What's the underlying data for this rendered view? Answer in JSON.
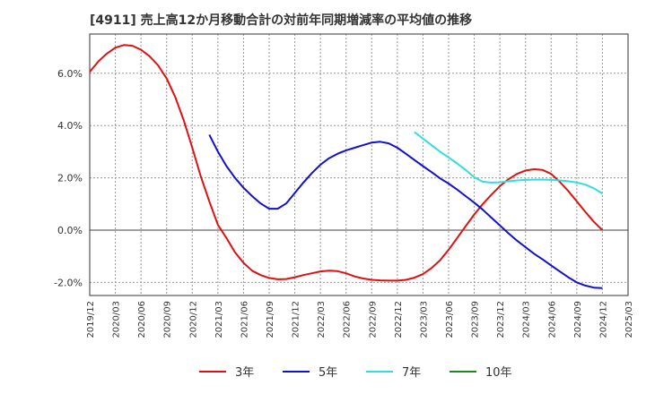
{
  "chart_data": {
    "type": "line",
    "title": "[4911]  売上高12か月移動合計の対前年同期増減率の平均値の推移",
    "xlabel": "",
    "ylabel": "",
    "ylim": [
      -2.5,
      7.5
    ],
    "y_ticks": [
      -2.0,
      0.0,
      2.0,
      4.0,
      6.0
    ],
    "y_tick_labels": [
      "-2.0%",
      "0.0%",
      "2.0%",
      "4.0%",
      "6.0%"
    ],
    "x_range": [
      "2019/12",
      "2025/03"
    ],
    "x_tick_labels": [
      "2019/12",
      "2020/03",
      "2020/06",
      "2020/09",
      "2020/12",
      "2021/03",
      "2021/06",
      "2021/09",
      "2021/12",
      "2022/03",
      "2022/06",
      "2022/09",
      "2022/12",
      "2023/03",
      "2023/06",
      "2023/09",
      "2023/12",
      "2024/03",
      "2024/06",
      "2024/09",
      "2024/12",
      "2025/03"
    ],
    "grid": true,
    "legend_position": "bottom",
    "series": [
      {
        "name": "3年",
        "color": "#dd1111",
        "points": [
          [
            "2019/12",
            6.05
          ],
          [
            "2020/01",
            6.45
          ],
          [
            "2020/02",
            6.75
          ],
          [
            "2020/03",
            6.98
          ],
          [
            "2020/04",
            7.08
          ],
          [
            "2020/05",
            7.05
          ],
          [
            "2020/06",
            6.9
          ],
          [
            "2020/07",
            6.65
          ],
          [
            "2020/08",
            6.3
          ],
          [
            "2020/09",
            5.8
          ],
          [
            "2020/10",
            5.1
          ],
          [
            "2020/11",
            4.2
          ],
          [
            "2020/12",
            3.15
          ],
          [
            "2021/01",
            2.05
          ],
          [
            "2021/02",
            1.1
          ],
          [
            "2021/03",
            0.2
          ],
          [
            "2021/04",
            -0.3
          ],
          [
            "2021/05",
            -0.85
          ],
          [
            "2021/06",
            -1.25
          ],
          [
            "2021/07",
            -1.55
          ],
          [
            "2021/08",
            -1.72
          ],
          [
            "2021/09",
            -1.83
          ],
          [
            "2021/10",
            -1.88
          ],
          [
            "2021/11",
            -1.87
          ],
          [
            "2021/12",
            -1.8
          ],
          [
            "2022/01",
            -1.72
          ],
          [
            "2022/02",
            -1.65
          ],
          [
            "2022/03",
            -1.58
          ],
          [
            "2022/04",
            -1.55
          ],
          [
            "2022/05",
            -1.57
          ],
          [
            "2022/06",
            -1.65
          ],
          [
            "2022/07",
            -1.77
          ],
          [
            "2022/08",
            -1.85
          ],
          [
            "2022/09",
            -1.9
          ],
          [
            "2022/10",
            -1.92
          ],
          [
            "2022/11",
            -1.93
          ],
          [
            "2022/12",
            -1.93
          ],
          [
            "2023/01",
            -1.9
          ],
          [
            "2023/02",
            -1.82
          ],
          [
            "2023/03",
            -1.68
          ],
          [
            "2023/04",
            -1.45
          ],
          [
            "2023/05",
            -1.15
          ],
          [
            "2023/06",
            -0.75
          ],
          [
            "2023/07",
            -0.3
          ],
          [
            "2023/08",
            0.15
          ],
          [
            "2023/09",
            0.6
          ],
          [
            "2023/10",
            1.0
          ],
          [
            "2023/11",
            1.35
          ],
          [
            "2023/12",
            1.68
          ],
          [
            "2024/01",
            1.95
          ],
          [
            "2024/02",
            2.15
          ],
          [
            "2024/03",
            2.28
          ],
          [
            "2024/04",
            2.33
          ],
          [
            "2024/05",
            2.3
          ],
          [
            "2024/06",
            2.15
          ],
          [
            "2024/07",
            1.85
          ],
          [
            "2024/08",
            1.5
          ],
          [
            "2024/09",
            1.1
          ],
          [
            "2024/10",
            0.7
          ],
          [
            "2024/11",
            0.32
          ],
          [
            "2024/12",
            0.0
          ]
        ]
      },
      {
        "name": "5年",
        "color": "#1111cc",
        "points": [
          [
            "2021/02",
            3.65
          ],
          [
            "2021/03",
            3.0
          ],
          [
            "2021/04",
            2.45
          ],
          [
            "2021/05",
            2.0
          ],
          [
            "2021/06",
            1.62
          ],
          [
            "2021/07",
            1.3
          ],
          [
            "2021/08",
            1.02
          ],
          [
            "2021/09",
            0.82
          ],
          [
            "2021/10",
            0.82
          ],
          [
            "2021/11",
            1.02
          ],
          [
            "2021/12",
            1.42
          ],
          [
            "2022/01",
            1.82
          ],
          [
            "2022/02",
            2.18
          ],
          [
            "2022/03",
            2.5
          ],
          [
            "2022/04",
            2.75
          ],
          [
            "2022/05",
            2.92
          ],
          [
            "2022/06",
            3.05
          ],
          [
            "2022/07",
            3.15
          ],
          [
            "2022/08",
            3.25
          ],
          [
            "2022/09",
            3.35
          ],
          [
            "2022/10",
            3.38
          ],
          [
            "2022/11",
            3.32
          ],
          [
            "2022/12",
            3.15
          ],
          [
            "2023/01",
            2.92
          ],
          [
            "2023/02",
            2.68
          ],
          [
            "2023/03",
            2.45
          ],
          [
            "2023/04",
            2.22
          ],
          [
            "2023/05",
            1.98
          ],
          [
            "2023/06",
            1.78
          ],
          [
            "2023/07",
            1.55
          ],
          [
            "2023/08",
            1.3
          ],
          [
            "2023/09",
            1.05
          ],
          [
            "2023/10",
            0.78
          ],
          [
            "2023/11",
            0.48
          ],
          [
            "2023/12",
            0.18
          ],
          [
            "2024/01",
            -0.12
          ],
          [
            "2024/02",
            -0.4
          ],
          [
            "2024/03",
            -0.65
          ],
          [
            "2024/04",
            -0.9
          ],
          [
            "2024/05",
            -1.12
          ],
          [
            "2024/06",
            -1.35
          ],
          [
            "2024/07",
            -1.58
          ],
          [
            "2024/08",
            -1.8
          ],
          [
            "2024/09",
            -2.0
          ],
          [
            "2024/10",
            -2.12
          ],
          [
            "2024/11",
            -2.2
          ],
          [
            "2024/12",
            -2.22
          ]
        ]
      },
      {
        "name": "7年",
        "color": "#33dddd",
        "points": [
          [
            "2023/02",
            3.75
          ],
          [
            "2023/03",
            3.5
          ],
          [
            "2023/04",
            3.25
          ],
          [
            "2023/05",
            3.0
          ],
          [
            "2023/06",
            2.78
          ],
          [
            "2023/07",
            2.55
          ],
          [
            "2023/08",
            2.3
          ],
          [
            "2023/09",
            2.02
          ],
          [
            "2023/10",
            1.85
          ],
          [
            "2023/11",
            1.82
          ],
          [
            "2023/12",
            1.83
          ],
          [
            "2024/01",
            1.87
          ],
          [
            "2024/02",
            1.9
          ],
          [
            "2024/03",
            1.92
          ],
          [
            "2024/04",
            1.93
          ],
          [
            "2024/05",
            1.93
          ],
          [
            "2024/06",
            1.92
          ],
          [
            "2024/07",
            1.9
          ],
          [
            "2024/08",
            1.87
          ],
          [
            "2024/09",
            1.82
          ],
          [
            "2024/10",
            1.74
          ],
          [
            "2024/11",
            1.6
          ],
          [
            "2024/12",
            1.4
          ]
        ]
      },
      {
        "name": "10年",
        "color": "#228822",
        "points": []
      }
    ]
  }
}
